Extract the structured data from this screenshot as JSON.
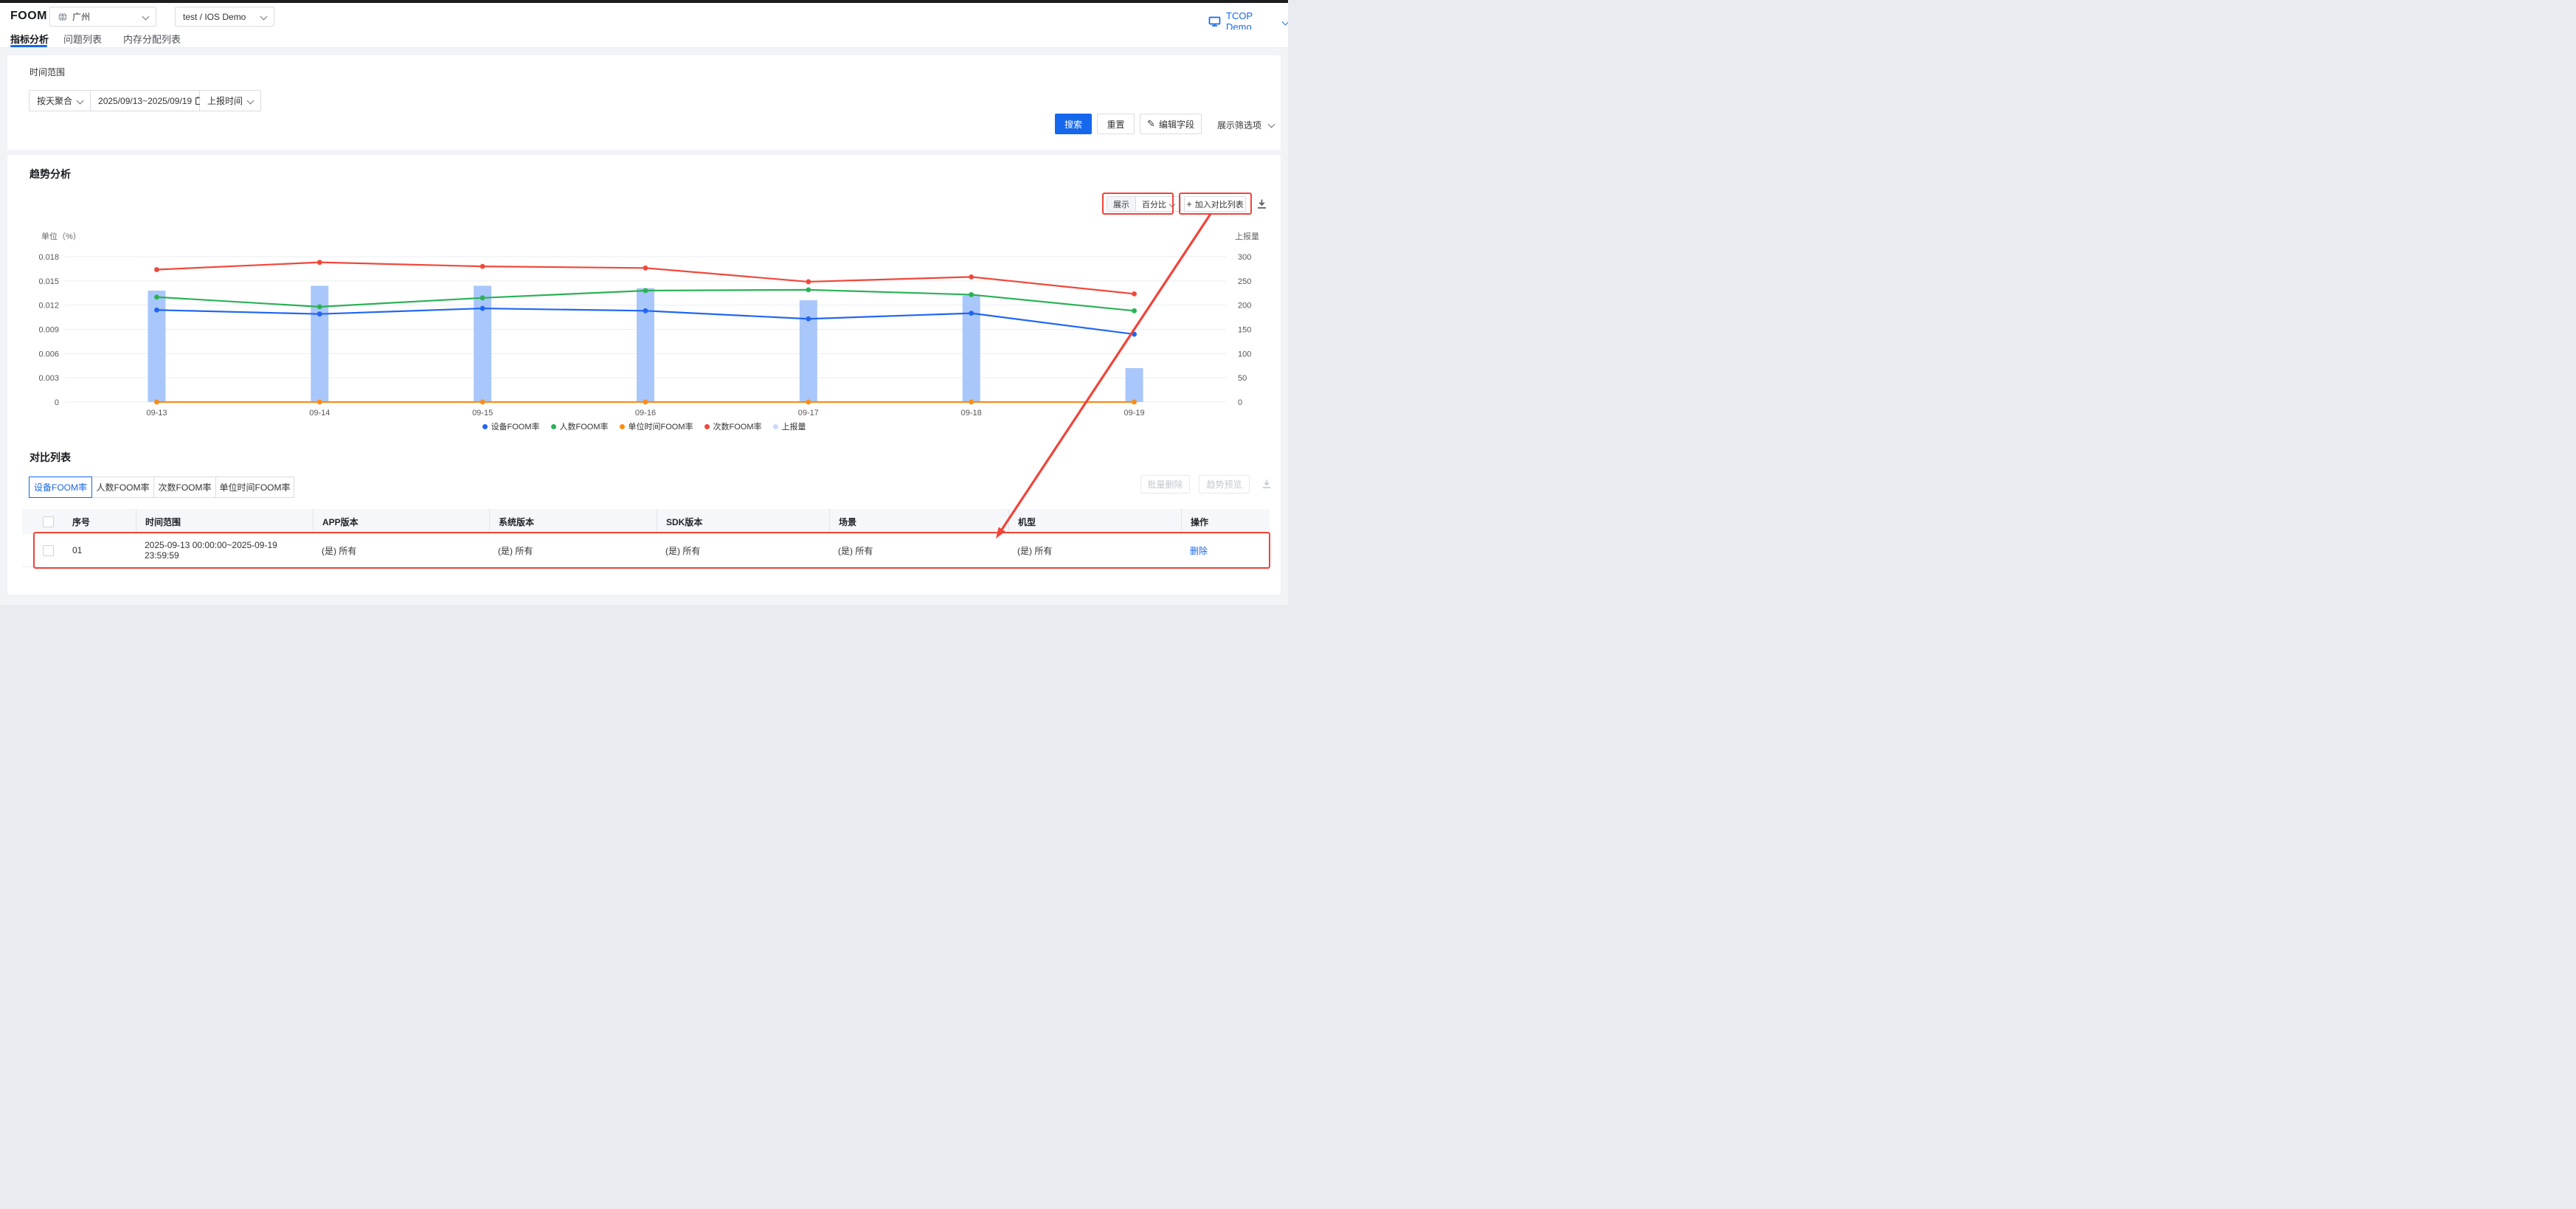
{
  "header": {
    "logo": "FOOM",
    "region": "广州",
    "project": "test / IOS Demo",
    "account": "TCOP Demo"
  },
  "nav_tabs": [
    {
      "label": "指标分析",
      "active": true
    },
    {
      "label": "问题列表",
      "active": false
    },
    {
      "label": "内存分配列表",
      "active": false
    }
  ],
  "filter": {
    "time_range_label": "时间范围",
    "aggregation": "按天聚合",
    "date_start": "2025/09/13",
    "date_separator": "~",
    "date_end": "2025/09/19",
    "report_time": "上报时间",
    "search": "搜索",
    "reset": "重置",
    "edit_fields": "编辑字段",
    "edit_fields_icon": "✎",
    "show_filters": "展示筛选项"
  },
  "trend": {
    "title": "趋势分析",
    "display_label": "展示",
    "display_value": "百分比",
    "plus_icon": "+",
    "add_to_comparison": "加入对比列表"
  },
  "chart_data": {
    "type": "bar+line",
    "categories": [
      "09-13",
      "09-14",
      "09-15",
      "09-16",
      "09-17",
      "09-18",
      "09-19"
    ],
    "series": [
      {
        "name": "设备FOOM率",
        "type": "line",
        "axis": "left",
        "color": "#2166f2",
        "values": [
          0.0114,
          0.0109,
          0.0116,
          0.0113,
          0.0103,
          0.011,
          0.0084
        ]
      },
      {
        "name": "人数FOOM率",
        "type": "line",
        "axis": "left",
        "color": "#2bb157",
        "values": [
          0.013,
          0.0118,
          0.0129,
          0.0138,
          0.0139,
          0.0133,
          0.0113
        ]
      },
      {
        "name": "单位时间FOOM率",
        "type": "line",
        "axis": "left",
        "color": "#fa8c16",
        "values": [
          0,
          0,
          0,
          0,
          0,
          0,
          0
        ]
      },
      {
        "name": "次数FOOM率",
        "type": "line",
        "axis": "left",
        "color": "#f0483b",
        "values": [
          0.0164,
          0.0173,
          0.0168,
          0.0166,
          0.0149,
          0.0155,
          0.0134
        ]
      },
      {
        "name": "上报量",
        "type": "bar",
        "axis": "right",
        "color": "#a9c7fa",
        "legend_color": "#c7dbfc",
        "values": [
          230,
          240,
          240,
          235,
          210,
          220,
          70
        ]
      }
    ],
    "left_axis": {
      "title": "单位（%）",
      "min": 0,
      "max": 0.018,
      "ticks": [
        0,
        0.003,
        0.006,
        0.009,
        0.012,
        0.015,
        0.018
      ]
    },
    "right_axis": {
      "title": "上报量",
      "min": 0,
      "max": 300,
      "ticks": [
        0,
        50,
        100,
        150,
        200,
        250,
        300
      ]
    },
    "grid": true,
    "legend_position": "bottom"
  },
  "comparison": {
    "title": "对比列表",
    "tabs": [
      {
        "label": "设备FOOM率",
        "active": true
      },
      {
        "label": "人数FOOM率",
        "active": false
      },
      {
        "label": "次数FOOM率",
        "active": false
      },
      {
        "label": "单位时间FOOM率",
        "active": false
      }
    ],
    "batch_delete": "批量删除",
    "trend_preview": "趋势预览",
    "table": {
      "columns": [
        "序号",
        "时间范围",
        "APP版本",
        "系统版本",
        "SDK版本",
        "场景",
        "机型",
        "操作"
      ],
      "rows": [
        {
          "no": "01",
          "time_range": "2025-09-13 00:00:00~2025-09-19 23:59:59",
          "app_version": "(是) 所有",
          "os_version": "(是) 所有",
          "sdk_version": "(是) 所有",
          "scene": "(是) 所有",
          "model": "(是) 所有",
          "action": "删除"
        }
      ]
    }
  },
  "colors": {
    "primary": "#1567ec",
    "annotation": "#f0443a"
  }
}
